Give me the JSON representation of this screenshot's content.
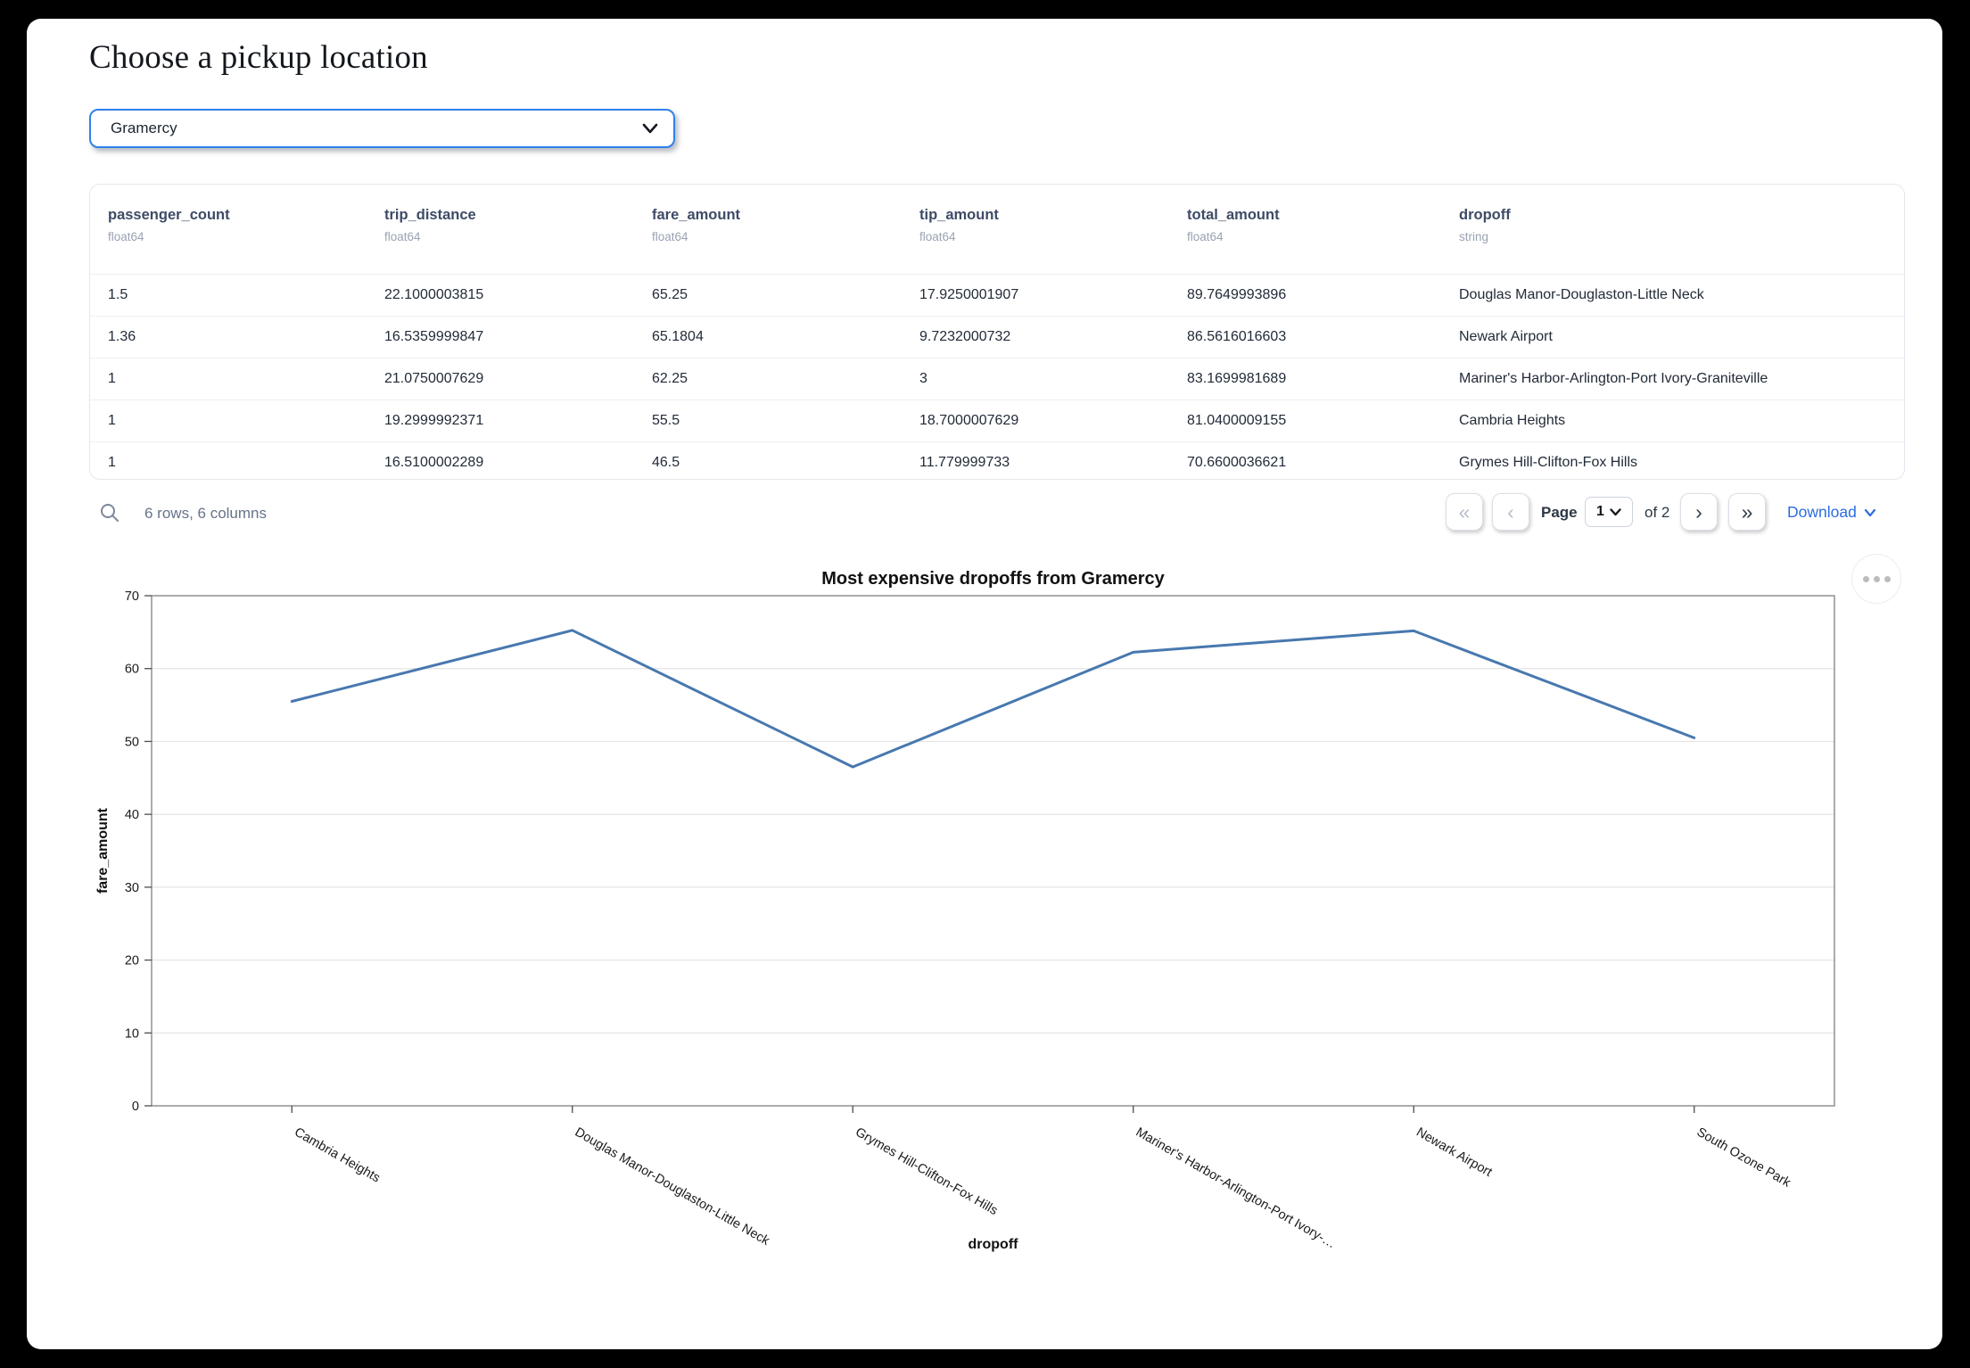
{
  "page": {
    "title": "Choose a pickup location"
  },
  "picker": {
    "value": "Gramercy"
  },
  "colors": {
    "accent": "#2f80ed",
    "link": "#2b6de0",
    "line": "#4878af"
  },
  "table": {
    "columns": [
      {
        "name": "passenger_count",
        "type": "float64"
      },
      {
        "name": "trip_distance",
        "type": "float64"
      },
      {
        "name": "fare_amount",
        "type": "float64"
      },
      {
        "name": "tip_amount",
        "type": "float64"
      },
      {
        "name": "total_amount",
        "type": "float64"
      },
      {
        "name": "dropoff",
        "type": "string"
      }
    ],
    "rows": [
      [
        "1.5",
        "22.1000003815",
        "65.25",
        "17.9250001907",
        "89.7649993896",
        "Douglas Manor-Douglaston-Little Neck"
      ],
      [
        "1.36",
        "16.5359999847",
        "65.1804",
        "9.7232000732",
        "86.5616016603",
        "Newark Airport"
      ],
      [
        "1",
        "21.0750007629",
        "62.25",
        "3",
        "83.1699981689",
        "Mariner's Harbor-Arlington-Port Ivory-Graniteville"
      ],
      [
        "1",
        "19.2999992371",
        "55.5",
        "18.7000007629",
        "81.0400009155",
        "Cambria Heights"
      ],
      [
        "1",
        "16.5100002289",
        "46.5",
        "11.779999733",
        "70.6600036621",
        "Grymes Hill-Clifton-Fox Hills"
      ]
    ],
    "summary": "6 rows, 6 columns",
    "pagination": {
      "label": "Page",
      "current_page": "1",
      "of_label": "of 2",
      "first_icon": "«",
      "prev_icon": "‹",
      "next_icon": "›",
      "last_icon": "»"
    },
    "download_label": "Download"
  },
  "chart_data": {
    "type": "line",
    "title": "Most expensive dropoffs from Gramercy",
    "xlabel": "dropoff",
    "ylabel": "fare_amount",
    "categories": [
      "Cambria Heights",
      "Douglas Manor-Douglaston-Little Neck",
      "Grymes Hill-Clifton-Fox Hills",
      "Mariner's Harbor-Arlington-Port Ivory-…",
      "Newark Airport",
      "South Ozone Park"
    ],
    "values": [
      55.5,
      65.25,
      46.5,
      62.25,
      65.1804,
      50.5
    ],
    "ylim": [
      0,
      70
    ],
    "yticks": [
      0,
      10,
      20,
      30,
      40,
      50,
      60,
      70
    ],
    "grid": true,
    "legend": "none",
    "line_color": "#4878af"
  }
}
